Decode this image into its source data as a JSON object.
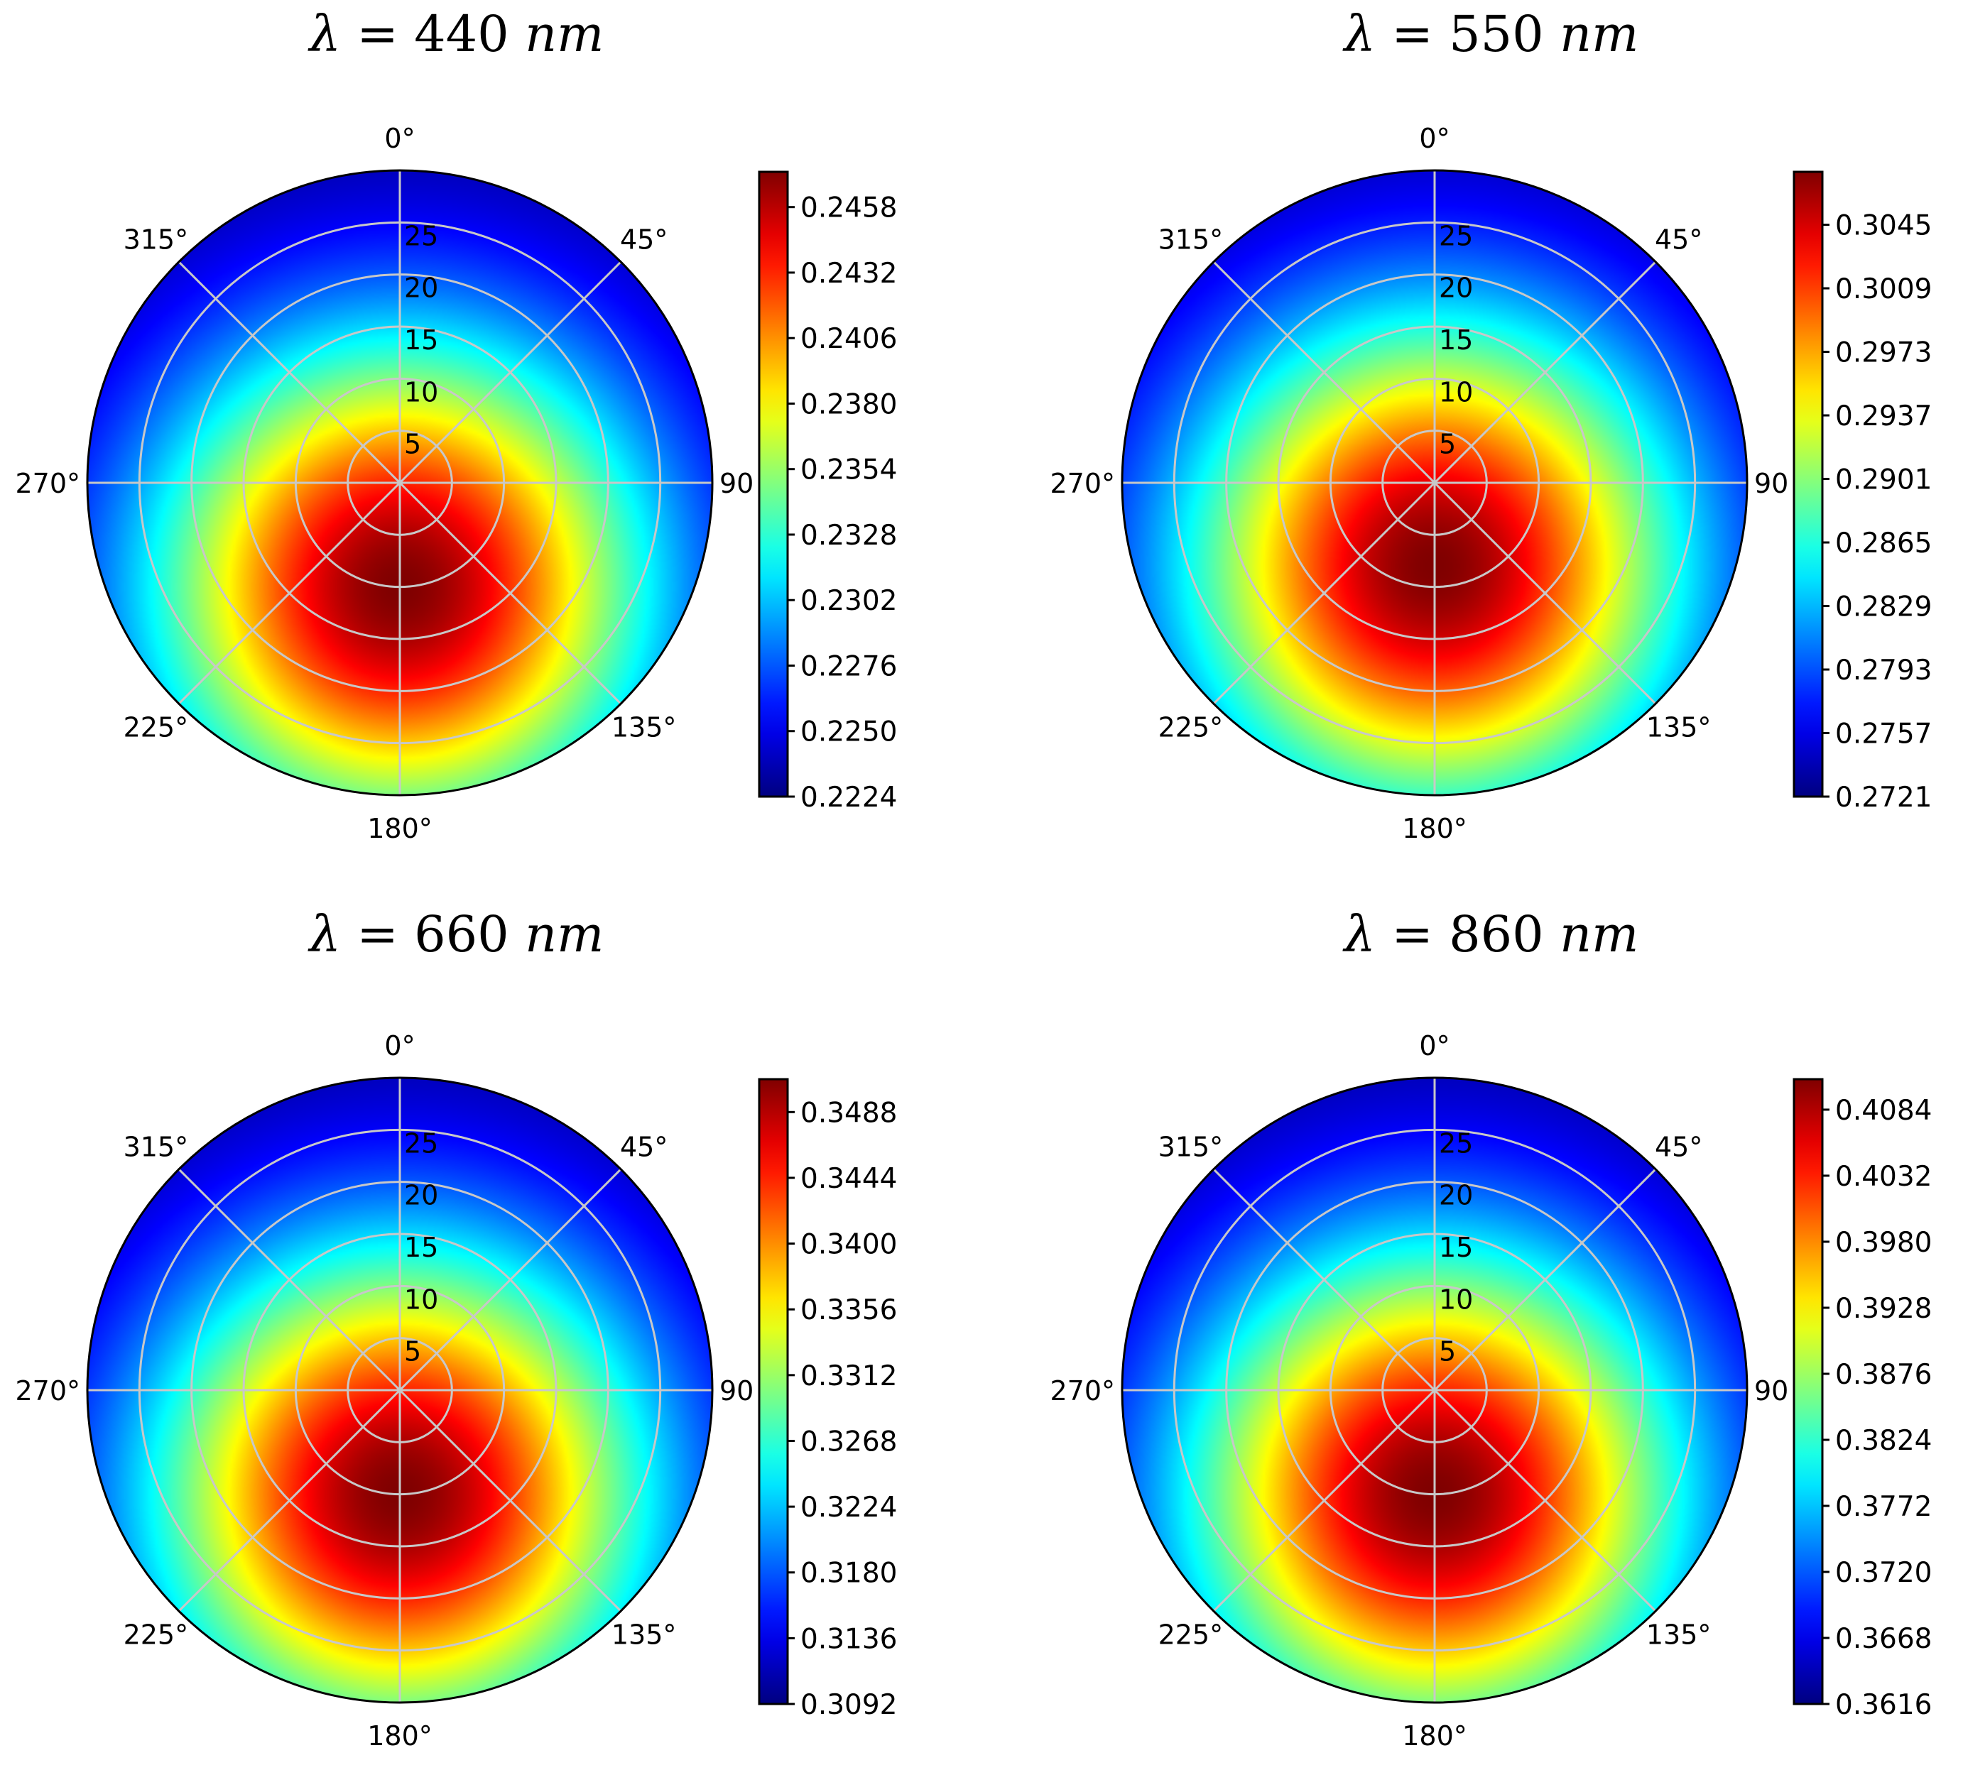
{
  "chart_data": [
    {
      "type": "heatmap",
      "projection": "polar",
      "title": "λ = 440 nm",
      "title_parts": {
        "symbol": "λ",
        "equals": "=",
        "number": "440",
        "unit": "nm"
      },
      "angle_ticks": [
        "0°",
        "45°",
        "90",
        "135°",
        "180°",
        "225°",
        "270°",
        "315°"
      ],
      "radial_ticks": [
        "5",
        "10",
        "15",
        "20",
        "25"
      ],
      "rlim": [
        0,
        30
      ],
      "colormap": "jet",
      "colorbar_ticks": [
        "0.2224",
        "0.2250",
        "0.2276",
        "0.2302",
        "0.2328",
        "0.2354",
        "0.2380",
        "0.2406",
        "0.2432",
        "0.2458"
      ],
      "colorbar_range": [
        0.2224,
        0.2472
      ],
      "field": {
        "peak_angle_deg": 180,
        "peak_radius": 10,
        "peak_value": 0.2472,
        "min_value": 0.2224
      }
    },
    {
      "type": "heatmap",
      "projection": "polar",
      "title": "λ = 550 nm",
      "title_parts": {
        "symbol": "λ",
        "equals": "=",
        "number": "550",
        "unit": "nm"
      },
      "angle_ticks": [
        "0°",
        "45°",
        "90",
        "135°",
        "180°",
        "225°",
        "270°",
        "315°"
      ],
      "radial_ticks": [
        "5",
        "10",
        "15",
        "20",
        "25"
      ],
      "rlim": [
        0,
        30
      ],
      "colormap": "jet",
      "colorbar_ticks": [
        "0.2721",
        "0.2757",
        "0.2793",
        "0.2829",
        "0.2865",
        "0.2901",
        "0.2937",
        "0.2973",
        "0.3009",
        "0.3045"
      ],
      "colorbar_range": [
        0.2721,
        0.3075
      ],
      "field": {
        "peak_angle_deg": 180,
        "peak_radius": 8,
        "peak_value": 0.3075,
        "min_value": 0.2721
      }
    },
    {
      "type": "heatmap",
      "projection": "polar",
      "title": "λ = 660 nm",
      "title_parts": {
        "symbol": "λ",
        "equals": "=",
        "number": "660",
        "unit": "nm"
      },
      "angle_ticks": [
        "0°",
        "45°",
        "90",
        "135°",
        "180°",
        "225°",
        "270°",
        "315°"
      ],
      "radial_ticks": [
        "5",
        "10",
        "15",
        "20",
        "25"
      ],
      "rlim": [
        0,
        30
      ],
      "colormap": "jet",
      "colorbar_ticks": [
        "0.3092",
        "0.3136",
        "0.3180",
        "0.3224",
        "0.3268",
        "0.3312",
        "0.3356",
        "0.3400",
        "0.3444",
        "0.3488"
      ],
      "colorbar_range": [
        0.3092,
        0.351
      ],
      "field": {
        "peak_angle_deg": 180,
        "peak_radius": 10,
        "peak_value": 0.351,
        "min_value": 0.3092
      }
    },
    {
      "type": "heatmap",
      "projection": "polar",
      "title": "λ = 860 nm",
      "title_parts": {
        "symbol": "λ",
        "equals": "=",
        "number": "860",
        "unit": "nm"
      },
      "angle_ticks": [
        "0°",
        "45°",
        "90",
        "135°",
        "180°",
        "225°",
        "270°",
        "315°"
      ],
      "radial_ticks": [
        "5",
        "10",
        "15",
        "20",
        "25"
      ],
      "rlim": [
        0,
        30
      ],
      "colormap": "jet",
      "colorbar_ticks": [
        "0.3616",
        "0.3668",
        "0.3720",
        "0.3772",
        "0.3824",
        "0.3876",
        "0.3928",
        "0.3980",
        "0.4032",
        "0.4084"
      ],
      "colorbar_range": [
        0.3616,
        0.4108
      ],
      "field": {
        "peak_angle_deg": 180,
        "peak_radius": 10,
        "peak_value": 0.4108,
        "min_value": 0.3616
      }
    }
  ]
}
